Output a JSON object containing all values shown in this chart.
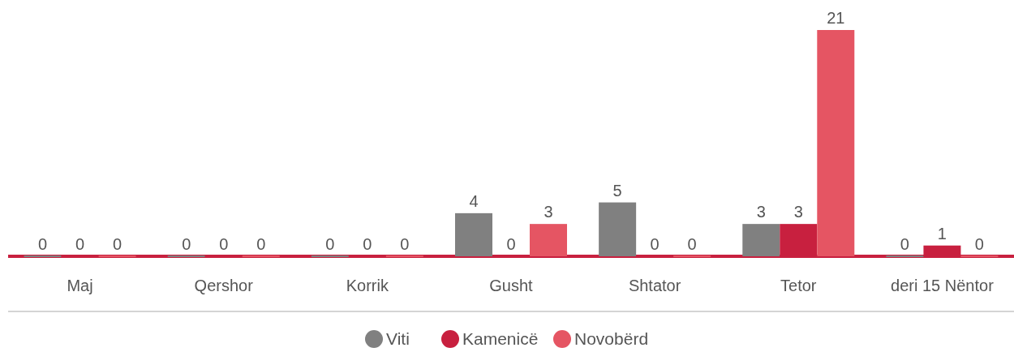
{
  "chart_data": {
    "type": "bar",
    "categories": [
      "Maj",
      "Qershor",
      "Korrik",
      "Gusht",
      "Shtator",
      "Tetor",
      "deri 15 Nëntor"
    ],
    "series": [
      {
        "name": "Viti",
        "color": "#808080",
        "values": [
          0,
          0,
          0,
          4,
          5,
          3,
          0
        ]
      },
      {
        "name": "Kamenicë",
        "color": "#c8203f",
        "values": [
          0,
          0,
          0,
          0,
          0,
          3,
          1
        ]
      },
      {
        "name": "Novobërd",
        "color": "#e55563",
        "values": [
          0,
          0,
          0,
          3,
          0,
          21,
          0
        ]
      }
    ],
    "data_labels": true,
    "legend": "bottom",
    "grid": false
  }
}
